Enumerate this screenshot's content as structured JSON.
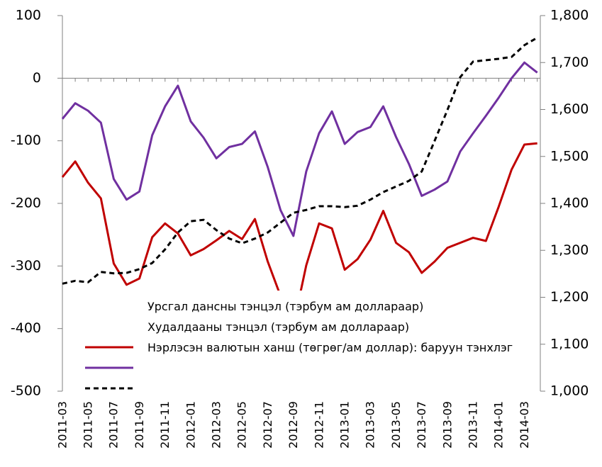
{
  "chart_data": {
    "type": "line",
    "categories": [
      "2011-03",
      null,
      "2011-05",
      null,
      "2011-07",
      null,
      "2011-09",
      null,
      "2011-11",
      null,
      "2012-01",
      null,
      "2012-03",
      null,
      "2012-05",
      null,
      "2012-07",
      null,
      "2012-09",
      null,
      "2012-11",
      null,
      "2013-01",
      null,
      "2013-03",
      null,
      "2013-05",
      null,
      "2013-07",
      null,
      "2013-09",
      null,
      "2013-11",
      null,
      "2014-01",
      null,
      "2014-03",
      null
    ],
    "series": [
      {
        "name": "Урсгал дансны тэнцэл (тэрбум ам доллараар)",
        "color": "#c00000",
        "dash": false,
        "values": [
          -158,
          -133,
          -167,
          -192,
          -296,
          -330,
          -320,
          -254,
          -232,
          -248,
          -283,
          -273,
          -259,
          -244,
          -257,
          -225,
          -293,
          -348,
          -395,
          -299,
          -232,
          -240,
          -306,
          -289,
          -258,
          -212,
          -263,
          -278,
          -311,
          -293,
          -271,
          -263,
          -255,
          -260,
          -205,
          -146,
          -106,
          -104
        ]
      },
      {
        "name": "Худалдааны тэнцэл (тэрбум ам доллараар)",
        "color": "#7030a0",
        "dash": false,
        "values": [
          -65,
          -40,
          -52,
          -71,
          -161,
          -194,
          -181,
          -91,
          -45,
          -12,
          -69,
          -95,
          -128,
          -110,
          -105,
          -85,
          -142,
          -211,
          -252,
          -149,
          -88,
          -53,
          -105,
          -86,
          -78,
          -45,
          -94,
          -137,
          -188,
          -178,
          -165,
          -117,
          -88,
          -60,
          -31,
          0,
          25,
          9
        ]
      },
      {
        "name": "Нэрлэсэн валютын ханш (төгрөг/ам доллар): баруун тэнхлэг",
        "color": "#000000",
        "dash": true,
        "axis": "y2",
        "values": [
          1229,
          1235,
          1232,
          1254,
          1251,
          1252,
          1260,
          1273,
          1302,
          1338,
          1362,
          1365,
          1343,
          1325,
          1315,
          1325,
          1338,
          1359,
          1380,
          1386,
          1394,
          1394,
          1392,
          1395,
          1408,
          1424,
          1436,
          1448,
          1468,
          1533,
          1599,
          1669,
          1702,
          1705,
          1708,
          1712,
          1737,
          1753
        ]
      }
    ],
    "ylim": [
      -500,
      100
    ],
    "yticks": [
      -500,
      -400,
      -300,
      -200,
      -100,
      0,
      100
    ],
    "y2lim": [
      1000,
      1800
    ],
    "y2ticks": [
      {
        "value": 1000,
        "label": "1,000"
      },
      {
        "value": 1100,
        "label": "1,100"
      },
      {
        "value": 1200,
        "label": "1,200"
      },
      {
        "value": 1300,
        "label": "1,300"
      },
      {
        "value": 1400,
        "label": "1,400"
      },
      {
        "value": 1500,
        "label": "1,500"
      },
      {
        "value": 1600,
        "label": "1,600"
      },
      {
        "value": 1700,
        "label": "1,700"
      },
      {
        "value": 1800,
        "label": "1,800"
      }
    ]
  }
}
